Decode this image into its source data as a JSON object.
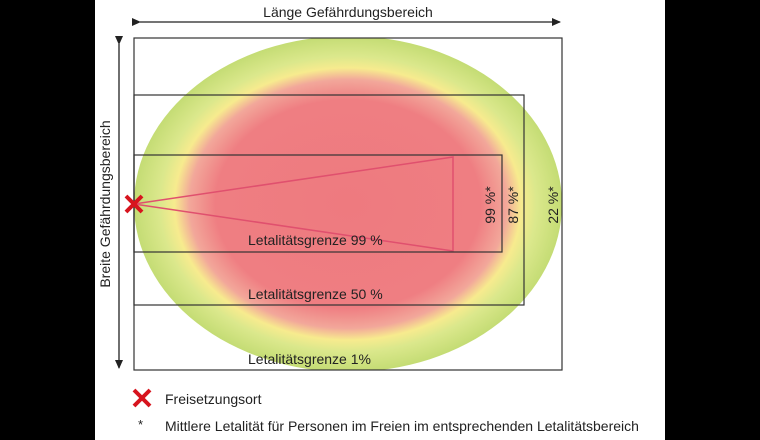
{
  "title_length": "Länge Gefährdungsbereich",
  "title_width": "Breite Gefährdungsbereich",
  "zones": [
    {
      "label": "Letalitätsgrenze 99 %",
      "mean_lethality": "99 %*"
    },
    {
      "label": "Letalitätsgrenze 50 %",
      "mean_lethality": "87 %*"
    },
    {
      "label": "Letalitätsgrenze 1%",
      "mean_lethality": "22 %*"
    }
  ],
  "legend": {
    "release_marker": "Freisetzungsort",
    "asterisk_symbol": "*",
    "asterisk_note": "Mittlere Letalität für Personen im Freien im entsprechenden Letalitätsbereich"
  },
  "colors": {
    "high": "#ef7b80",
    "mid": "#f6ea8c",
    "low": "#c6de78",
    "marker": "#d7141e"
  }
}
